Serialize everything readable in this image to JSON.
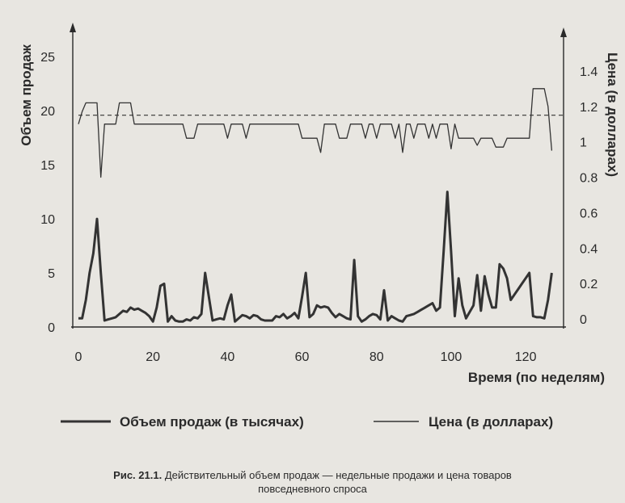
{
  "chart_data": {
    "type": "line",
    "xlabel": "Время (по неделям)",
    "ylabel_left": "Объем продаж",
    "ylabel_right": "Цена (в долларах)",
    "xlim": [
      0,
      128
    ],
    "ylim_left": [
      0,
      28
    ],
    "ylim_right": [
      0,
      1.6
    ],
    "x_ticks": [
      "0",
      "20",
      "40",
      "60",
      "80",
      "100",
      "120"
    ],
    "y_left_ticks": [
      "0",
      "5",
      "10",
      "15",
      "20",
      "25"
    ],
    "y_right_ticks": [
      "0",
      "0.2",
      "0.4",
      "0.6",
      "0.8",
      "1",
      "1.2",
      "1.4"
    ],
    "grid": false,
    "legend_position": "bottom",
    "reference_line": {
      "axis": "right",
      "value": 1.15,
      "style": "dashed"
    },
    "series": [
      {
        "name": "Объем продаж (в тысячах)",
        "axis": "left",
        "style": "thick",
        "x": [
          0,
          1,
          2,
          3,
          4,
          5,
          6,
          7,
          8,
          9,
          10,
          11,
          12,
          13,
          14,
          15,
          16,
          17,
          18,
          19,
          20,
          21,
          22,
          23,
          24,
          25,
          26,
          27,
          28,
          29,
          30,
          31,
          32,
          33,
          34,
          35,
          36,
          37,
          38,
          39,
          40,
          41,
          42,
          43,
          44,
          45,
          46,
          47,
          48,
          49,
          50,
          51,
          52,
          53,
          54,
          55,
          56,
          57,
          58,
          59,
          60,
          61,
          62,
          63,
          64,
          65,
          66,
          67,
          68,
          69,
          70,
          71,
          72,
          73,
          74,
          75,
          76,
          77,
          78,
          79,
          80,
          81,
          82,
          83,
          84,
          85,
          86,
          87,
          88,
          89,
          90,
          91,
          92,
          93,
          94,
          95,
          96,
          97,
          98,
          99,
          100,
          101,
          102,
          103,
          104,
          105,
          106,
          107,
          108,
          109,
          110,
          111,
          112,
          113,
          114,
          115,
          116,
          117,
          118,
          119,
          120,
          121,
          122,
          123,
          124,
          125,
          126,
          127
        ],
        "values": [
          0.8,
          0.8,
          2.5,
          5.0,
          6.8,
          10.0,
          5.0,
          0.6,
          0.7,
          0.8,
          0.9,
          1.2,
          1.5,
          1.4,
          1.8,
          1.6,
          1.7,
          1.5,
          1.3,
          1.0,
          0.5,
          1.8,
          3.8,
          4.0,
          0.5,
          1.0,
          0.6,
          0.5,
          0.5,
          0.7,
          0.6,
          0.9,
          0.8,
          1.2,
          5.0,
          2.8,
          0.6,
          0.7,
          0.8,
          0.7,
          2.0,
          3.0,
          0.5,
          0.8,
          1.1,
          1.0,
          0.8,
          1.1,
          1.0,
          0.7,
          0.6,
          0.6,
          0.6,
          1.0,
          0.9,
          1.2,
          0.8,
          1.0,
          1.3,
          0.8,
          2.8,
          5.0,
          0.9,
          1.2,
          2.0,
          1.8,
          1.9,
          1.8,
          1.3,
          0.9,
          1.2,
          1.0,
          0.8,
          0.7,
          6.2,
          1.0,
          0.5,
          0.7,
          1.0,
          1.2,
          1.1,
          0.7,
          3.4,
          0.6,
          1.0,
          0.8,
          0.6,
          0.5,
          1.0,
          1.1,
          1.2,
          1.4,
          1.6,
          1.8,
          2.0,
          2.2,
          1.5,
          1.8,
          7.0,
          12.5,
          7.0,
          1.0,
          4.5,
          2.0,
          0.8,
          1.4,
          2.0,
          4.8,
          1.5,
          4.7,
          3.0,
          1.8,
          1.8,
          5.8,
          5.4,
          4.5,
          2.5,
          3.0,
          3.5,
          4.0,
          4.5,
          5.0,
          1.0,
          0.9,
          0.9,
          0.8,
          2.5,
          5.0
        ]
      },
      {
        "name": "Цена (в долларах)",
        "axis": "right",
        "style": "thin",
        "x": [
          0,
          1,
          2,
          3,
          4,
          5,
          6,
          7,
          8,
          9,
          10,
          11,
          12,
          13,
          14,
          15,
          16,
          17,
          18,
          19,
          20,
          21,
          22,
          23,
          24,
          25,
          26,
          27,
          28,
          29,
          30,
          31,
          32,
          33,
          34,
          35,
          36,
          37,
          38,
          39,
          40,
          41,
          42,
          43,
          44,
          45,
          46,
          47,
          48,
          49,
          50,
          51,
          52,
          53,
          54,
          55,
          56,
          57,
          58,
          59,
          60,
          61,
          62,
          63,
          64,
          65,
          66,
          67,
          68,
          69,
          70,
          71,
          72,
          73,
          74,
          75,
          76,
          77,
          78,
          79,
          80,
          81,
          82,
          83,
          84,
          85,
          86,
          87,
          88,
          89,
          90,
          91,
          92,
          93,
          94,
          95,
          96,
          97,
          98,
          99,
          100,
          101,
          102,
          103,
          104,
          105,
          106,
          107,
          108,
          109,
          110,
          111,
          112,
          113,
          114,
          115,
          116,
          117,
          118,
          119,
          120,
          121,
          122,
          123,
          124,
          125,
          126,
          127
        ],
        "values": [
          1.1,
          1.17,
          1.22,
          1.22,
          1.22,
          1.22,
          0.8,
          1.1,
          1.1,
          1.1,
          1.1,
          1.22,
          1.22,
          1.22,
          1.22,
          1.1,
          1.1,
          1.1,
          1.1,
          1.1,
          1.1,
          1.1,
          1.1,
          1.1,
          1.1,
          1.1,
          1.1,
          1.1,
          1.1,
          1.02,
          1.02,
          1.02,
          1.1,
          1.1,
          1.1,
          1.1,
          1.1,
          1.1,
          1.1,
          1.1,
          1.02,
          1.1,
          1.1,
          1.1,
          1.1,
          1.02,
          1.1,
          1.1,
          1.1,
          1.1,
          1.1,
          1.1,
          1.1,
          1.1,
          1.1,
          1.1,
          1.1,
          1.1,
          1.1,
          1.1,
          1.02,
          1.02,
          1.02,
          1.02,
          1.02,
          0.94,
          1.1,
          1.1,
          1.1,
          1.1,
          1.02,
          1.02,
          1.02,
          1.1,
          1.1,
          1.1,
          1.1,
          1.02,
          1.1,
          1.1,
          1.02,
          1.1,
          1.1,
          1.1,
          1.1,
          1.02,
          1.1,
          0.94,
          1.1,
          1.1,
          1.02,
          1.1,
          1.1,
          1.1,
          1.02,
          1.1,
          1.02,
          1.1,
          1.1,
          1.1,
          0.96,
          1.1,
          1.02,
          1.02,
          1.02,
          1.02,
          1.02,
          0.98,
          1.02,
          1.02,
          1.02,
          1.02,
          0.97,
          0.97,
          0.97,
          1.02,
          1.02,
          1.02,
          1.02,
          1.02,
          1.02,
          1.02,
          1.3,
          1.3,
          1.3,
          1.3,
          1.2,
          0.95
        ]
      }
    ]
  },
  "caption": {
    "figure_number": "Рис. 21.1.",
    "text_line1": "Действительный объем продаж — недельные продажи и цена товаров",
    "text_line2": "повседневного спроса"
  }
}
